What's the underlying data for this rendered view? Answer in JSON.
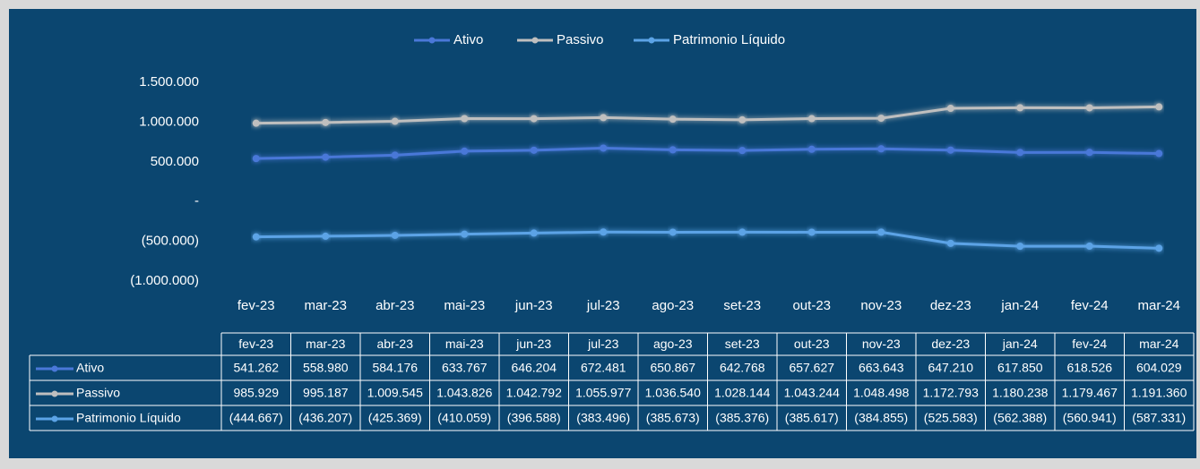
{
  "chart_data": {
    "type": "line",
    "categories": [
      "fev-23",
      "mar-23",
      "abr-23",
      "mai-23",
      "jun-23",
      "jul-23",
      "ago-23",
      "set-23",
      "out-23",
      "nov-23",
      "dez-23",
      "jan-24",
      "fev-24",
      "mar-24"
    ],
    "series": [
      {
        "name": "Ativo",
        "color": "#4a78d8",
        "values": [
          541262,
          558980,
          584176,
          633767,
          646204,
          672481,
          650867,
          642768,
          657627,
          663643,
          647210,
          617850,
          618526,
          604029
        ],
        "value_labels": [
          "541.262",
          "558.980",
          "584.176",
          "633.767",
          "646.204",
          "672.481",
          "650.867",
          "642.768",
          "657.627",
          "663.643",
          "647.210",
          "617.850",
          "618.526",
          "604.029"
        ]
      },
      {
        "name": "Passivo",
        "color": "#bfbfbf",
        "values": [
          985929,
          995187,
          1009545,
          1043826,
          1042792,
          1055977,
          1036540,
          1028144,
          1043244,
          1048498,
          1172793,
          1180238,
          1179467,
          1191360
        ],
        "value_labels": [
          "985.929",
          "995.187",
          "1.009.545",
          "1.043.826",
          "1.042.792",
          "1.055.977",
          "1.036.540",
          "1.028.144",
          "1.043.244",
          "1.048.498",
          "1.172.793",
          "1.180.238",
          "1.179.467",
          "1.191.360"
        ]
      },
      {
        "name": "Patrimonio Líquido",
        "color": "#5ba3e6",
        "values": [
          -444667,
          -436207,
          -425369,
          -410059,
          -396588,
          -383496,
          -385673,
          -385376,
          -385617,
          -384855,
          -525583,
          -562388,
          -560941,
          -587331
        ],
        "value_labels": [
          "(444.667)",
          "(436.207)",
          "(425.369)",
          "(410.059)",
          "(396.588)",
          "(383.496)",
          "(385.673)",
          "(385.376)",
          "(385.617)",
          "(384.855)",
          "(525.583)",
          "(562.388)",
          "(560.941)",
          "(587.331)"
        ]
      }
    ],
    "ylim": [
      -1000000,
      1500000
    ],
    "yticks": [
      {
        "value": -1000000,
        "label": "(1.000.000)"
      },
      {
        "value": -500000,
        "label": "(500.000)"
      },
      {
        "value": 0,
        "label": "-"
      },
      {
        "value": 500000,
        "label": "500.000"
      },
      {
        "value": 1000000,
        "label": "1.000.000"
      },
      {
        "value": 1500000,
        "label": "1.500.000"
      }
    ],
    "legend": "top",
    "data_table": true
  }
}
